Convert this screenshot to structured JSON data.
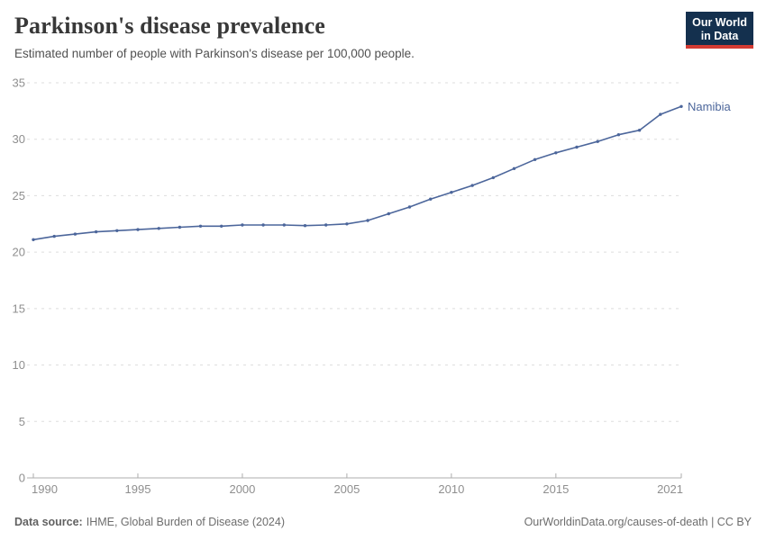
{
  "header": {
    "title": "Parkinson's disease prevalence",
    "subtitle": "Estimated number of people with Parkinson's disease per 100,000 people."
  },
  "logo": {
    "line1": "Our World",
    "line2": "in Data"
  },
  "footer": {
    "source_label": "Data source:",
    "source_value": "IHME, Global Burden of Disease (2024)",
    "credit": "OurWorldinData.org/causes-of-death | CC BY"
  },
  "colors": {
    "line": "#4c669b",
    "series_label": "#4c669b",
    "grid": "#dddddd",
    "axis": "#adadad",
    "tick_text": "#8f8f8f",
    "logo_bg": "#14304e",
    "logo_stripe": "#d43b33"
  },
  "chart_data": {
    "type": "line",
    "title": "Parkinson's disease prevalence",
    "xlabel": "",
    "ylabel": "",
    "x": [
      1990,
      1991,
      1992,
      1993,
      1994,
      1995,
      1996,
      1997,
      1998,
      1999,
      2000,
      2001,
      2002,
      2003,
      2004,
      2005,
      2006,
      2007,
      2008,
      2009,
      2010,
      2011,
      2012,
      2013,
      2014,
      2015,
      2016,
      2017,
      2018,
      2019,
      2020,
      2021
    ],
    "series": [
      {
        "name": "Namibia",
        "values": [
          21.1,
          21.4,
          21.6,
          21.8,
          21.9,
          22.0,
          22.1,
          22.2,
          22.3,
          22.3,
          22.4,
          22.4,
          22.4,
          22.35,
          22.4,
          22.5,
          22.8,
          23.4,
          24.0,
          24.7,
          25.3,
          25.9,
          26.6,
          27.4,
          28.2,
          28.8,
          29.3,
          29.8,
          30.4,
          30.8,
          32.2,
          32.9
        ]
      }
    ],
    "xticks": [
      1990,
      1995,
      2000,
      2005,
      2010,
      2015,
      2021
    ],
    "ylim": [
      0,
      35
    ],
    "ytick_step": 5,
    "grid": true,
    "legend": "end-of-line-label"
  }
}
